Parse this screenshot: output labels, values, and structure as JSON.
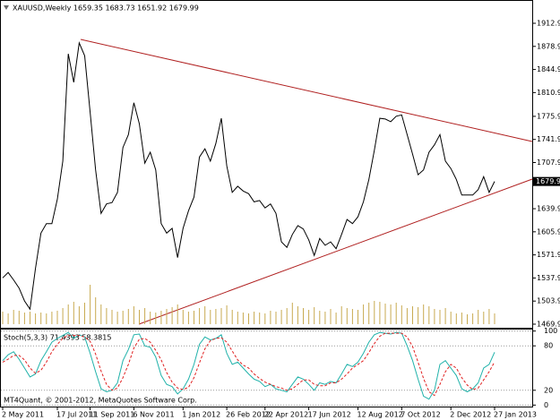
{
  "chart_data": [
    {
      "type": "line",
      "title": "XAUUSD,Weekly  1659.35 1683.73 1651.92 1679.99",
      "categories": [
        "2 May 2011",
        null,
        null,
        null,
        null,
        null,
        null,
        null,
        null,
        null,
        "17 Jul 2011",
        null,
        null,
        null,
        null,
        null,
        "11 Sep 2011",
        null,
        null,
        null,
        null,
        null,
        null,
        null,
        "6 Nov 2011",
        null,
        null,
        null,
        null,
        null,
        null,
        null,
        null,
        "1 Jan 2012",
        null,
        null,
        null,
        null,
        null,
        null,
        null,
        "26 Feb 2012",
        null,
        null,
        null,
        null,
        null,
        null,
        "22 Apr 2012",
        null,
        null,
        null,
        null,
        null,
        null,
        null,
        "17 Jun 2012",
        null,
        null,
        null,
        null,
        null,
        null,
        null,
        null,
        "12 Aug 2012",
        null,
        null,
        null,
        null,
        null,
        null,
        null,
        "7 Oct 2012",
        null,
        null,
        null,
        null,
        null,
        null,
        null,
        null,
        "2 Dec 2012",
        null,
        null,
        null,
        null,
        null,
        null,
        null,
        "27 Jan 2013"
      ],
      "series": [
        {
          "color": "#000000",
          "values": [
            1538,
            1546,
            1535,
            1523,
            1504,
            1492,
            1552,
            1604,
            1618,
            1618,
            1654,
            1710,
            1868,
            1826,
            1884,
            1865,
            1782,
            1697,
            1633,
            1647,
            1649,
            1664,
            1730,
            1749,
            1796,
            1765,
            1707,
            1723,
            1697,
            1618,
            1604,
            1611,
            1568,
            1611,
            1637,
            1657,
            1716,
            1728,
            1710,
            1736,
            1773,
            1703,
            1664,
            1673,
            1666,
            1662,
            1650,
            1652,
            1641,
            1647,
            1633,
            1591,
            1583,
            1602,
            1615,
            1610,
            1594,
            1571,
            1596,
            1586,
            1591,
            1581,
            1602,
            1624,
            1618,
            1628,
            1650,
            1683,
            1726,
            1773,
            1772,
            1768,
            1776,
            1778,
            1749,
            1720,
            1690,
            1697,
            1723,
            1734,
            1749,
            1710,
            1699,
            1683,
            1660,
            1660,
            1660,
            1668,
            1687,
            1664,
            1679.99
          ]
        }
      ],
      "volume": {
        "color": "#c8aa50",
        "values": [
          14,
          12,
          16,
          15,
          13,
          14,
          12,
          13,
          12,
          14,
          15,
          18,
          22,
          25,
          20,
          24,
          44,
          30,
          22,
          18,
          16,
          14,
          15,
          17,
          20,
          16,
          18,
          14,
          13,
          15,
          17,
          19,
          22,
          16,
          14,
          15,
          18,
          20,
          16,
          17,
          18,
          21,
          16,
          14,
          13,
          12,
          14,
          13,
          12,
          15,
          14,
          16,
          18,
          24,
          20,
          18,
          16,
          19,
          15,
          14,
          17,
          13,
          20,
          18,
          17,
          16,
          22,
          24,
          26,
          25,
          23,
          22,
          24,
          21,
          18,
          20,
          19,
          22,
          20,
          17,
          16,
          18,
          14,
          12,
          13,
          11,
          12,
          16,
          14,
          17,
          12
        ]
      },
      "ylim": [
        1464.6,
        1947.2
      ],
      "yticks": [
        {
          "value": 1912.9,
          "label": "1912.90"
        },
        {
          "value": 1878.9,
          "label": "1878.90"
        },
        {
          "value": 1844.9,
          "label": "1844.90"
        },
        {
          "value": 1810.9,
          "label": "1810.90"
        },
        {
          "value": 1775.9,
          "label": "1775.90"
        },
        {
          "value": 1741.9,
          "label": "1741.90"
        },
        {
          "value": 1707.9,
          "label": "1707.90"
        },
        {
          "value": 1639.9,
          "label": "1639.90"
        },
        {
          "value": 1605.9,
          "label": "1605.90"
        },
        {
          "value": 1571.9,
          "label": "1571.90"
        },
        {
          "value": 1537.9,
          "label": "1537.90"
        },
        {
          "value": 1503.9,
          "label": "1503.90"
        },
        {
          "value": 1469.9,
          "label": "1469.90"
        }
      ]
    },
    {
      "type": "line",
      "title": "Stoch(5,3,3) 71.4393 58.3815",
      "annotation": "MT4Quant, © 2001-2012, MetaQuotes Software Corp.",
      "series": [
        {
          "color": "#20b2aa",
          "dashed": false,
          "values": [
            60,
            68,
            72,
            62,
            50,
            38,
            42,
            60,
            72,
            85,
            90,
            94,
            98,
            90,
            95,
            92,
            70,
            45,
            22,
            18,
            20,
            30,
            60,
            75,
            95,
            96,
            80,
            78,
            65,
            40,
            28,
            25,
            15,
            22,
            35,
            55,
            82,
            92,
            88,
            90,
            95,
            70,
            55,
            58,
            50,
            42,
            35,
            32,
            25,
            28,
            22,
            20,
            18,
            28,
            38,
            35,
            28,
            20,
            30,
            28,
            32,
            30,
            42,
            55,
            52,
            58,
            70,
            85,
            95,
            98,
            97,
            96,
            98,
            97,
            80,
            60,
            35,
            12,
            8,
            20,
            55,
            60,
            50,
            40,
            22,
            18,
            22,
            30,
            50,
            55,
            71.4393
          ]
        },
        {
          "color": "#e02020",
          "dashed": true,
          "values": [
            58,
            62,
            67,
            67,
            61,
            50,
            43,
            47,
            58,
            72,
            82,
            90,
            94,
            94,
            94,
            92,
            86,
            69,
            46,
            28,
            20,
            23,
            37,
            55,
            77,
            89,
            90,
            85,
            74,
            61,
            44,
            31,
            23,
            21,
            24,
            37,
            57,
            76,
            87,
            90,
            91,
            85,
            73,
            61,
            54,
            50,
            42,
            36,
            31,
            28,
            25,
            23,
            20,
            22,
            28,
            34,
            34,
            28,
            26,
            26,
            30,
            30,
            35,
            42,
            50,
            55,
            60,
            71,
            83,
            93,
            97,
            97,
            97,
            97,
            92,
            79,
            58,
            36,
            18,
            13,
            28,
            45,
            55,
            50,
            37,
            27,
            21,
            23,
            34,
            45,
            58.3815
          ]
        }
      ],
      "ylim": [
        -2,
        102
      ],
      "yticks": [
        100,
        80,
        20,
        0
      ],
      "grid": true
    }
  ]
}
